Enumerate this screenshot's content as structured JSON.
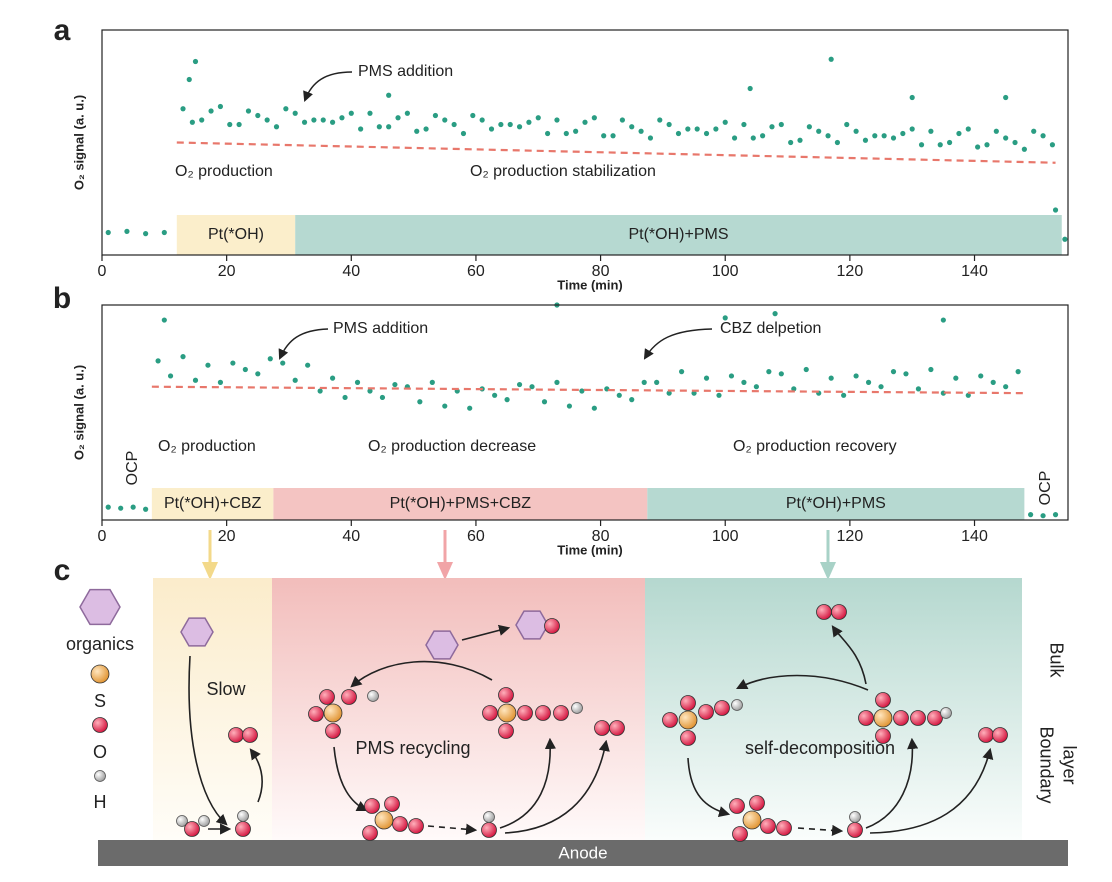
{
  "chart_data": [
    {
      "type": "scatter",
      "panel_label": "a",
      "x_label": "Time (min)",
      "y_label": "O₂ signal (a. u.)",
      "xlim": [
        0,
        155
      ],
      "xticks": [
        0,
        20,
        40,
        60,
        80,
        100,
        120,
        140
      ],
      "ylim": [
        0,
        10
      ],
      "series": [
        {
          "color": "#2a9d83",
          "x": [
            1,
            4,
            7,
            10,
            13,
            14.5,
            16,
            17.5,
            19,
            20.5,
            22,
            23.5,
            25,
            26.5,
            28,
            29.5,
            31,
            32.5,
            34,
            35.5,
            37,
            38.5,
            40,
            41.5,
            43,
            44.5,
            46,
            47.5,
            49,
            50.5,
            52,
            53.5,
            55,
            56.5,
            58,
            59.5,
            61,
            62.5,
            64,
            65.5,
            67,
            68.5,
            70,
            71.5,
            73,
            74.5,
            76,
            77.5,
            79,
            80.5,
            82,
            83.5,
            85,
            86.5,
            88,
            89.5,
            91,
            92.5,
            94,
            95.5,
            97,
            98.5,
            100,
            101.5,
            103,
            104.5,
            106,
            107.5,
            109,
            110.5,
            112,
            113.5,
            115,
            116.5,
            118,
            119.5,
            121,
            122.5,
            124,
            125.5,
            127,
            128.5,
            130,
            131.5,
            133,
            134.5,
            136,
            137.5,
            139,
            140.5,
            142,
            143.5,
            145,
            146.5,
            148,
            149.5,
            151,
            152.5,
            14,
            15,
            46,
            104,
            117,
            130,
            145,
            153,
            154.5
          ],
          "values": [
            1.0,
            1.05,
            0.95,
            1.0,
            6.5,
            5.9,
            6.0,
            6.4,
            6.6,
            5.8,
            5.8,
            6.4,
            6.2,
            6.0,
            5.7,
            6.5,
            6.3,
            5.9,
            6.0,
            6.0,
            5.9,
            6.1,
            6.3,
            5.6,
            6.3,
            5.7,
            5.7,
            6.1,
            6.3,
            5.5,
            5.6,
            6.2,
            6.0,
            5.8,
            5.4,
            6.2,
            6.0,
            5.6,
            5.8,
            5.8,
            5.7,
            5.9,
            6.1,
            5.4,
            6.0,
            5.4,
            5.5,
            5.9,
            6.1,
            5.3,
            5.3,
            6.0,
            5.7,
            5.5,
            5.2,
            6.0,
            5.8,
            5.4,
            5.6,
            5.6,
            5.4,
            5.6,
            5.9,
            5.2,
            5.8,
            5.2,
            5.3,
            5.7,
            5.8,
            5.0,
            5.1,
            5.7,
            5.5,
            5.3,
            5.0,
            5.8,
            5.5,
            5.1,
            5.3,
            5.3,
            5.2,
            5.4,
            5.6,
            4.9,
            5.5,
            4.9,
            5.0,
            5.4,
            5.6,
            4.8,
            4.9,
            5.5,
            5.2,
            5.0,
            4.7,
            5.5,
            5.3,
            4.9,
            7.8,
            8.6,
            7.1,
            7.4,
            8.7,
            7.0,
            7.0,
            2.0,
            0.7
          ]
        }
      ],
      "trend_line": {
        "color": "#e8776b",
        "x": [
          12,
          153
        ],
        "values": [
          5.0,
          4.1
        ]
      },
      "phases": [
        {
          "label": "Pt(*OH)",
          "start": 12,
          "end": 31,
          "color": "#fbeecb"
        },
        {
          "label": "Pt(*OH)+PMS",
          "start": 31,
          "end": 154,
          "color": "#b6d9d1"
        }
      ],
      "annotations": [
        "PMS addition",
        "O₂ production",
        "O₂ production stabilization"
      ]
    },
    {
      "type": "scatter",
      "panel_label": "b",
      "x_label": "Time (min)",
      "y_label": "O₂ signal (a. u.)",
      "xlim": [
        0,
        155
      ],
      "xticks": [
        0,
        20,
        40,
        60,
        80,
        100,
        120,
        140
      ],
      "ylim": [
        0,
        10
      ],
      "series": [
        {
          "color": "#2a9d83",
          "x": [
            1,
            3,
            5,
            7,
            9,
            11,
            13,
            15,
            17,
            19,
            21,
            23,
            25,
            27,
            29,
            31,
            33,
            35,
            37,
            39,
            41,
            43,
            45,
            47,
            49,
            51,
            53,
            55,
            57,
            59,
            61,
            63,
            65,
            67,
            69,
            71,
            73,
            75,
            77,
            79,
            81,
            83,
            85,
            87,
            89,
            91,
            93,
            95,
            97,
            99,
            101,
            103,
            105,
            107,
            109,
            111,
            113,
            115,
            117,
            119,
            121,
            123,
            125,
            127,
            129,
            131,
            133,
            135,
            137,
            139,
            141,
            143,
            145,
            147,
            149,
            151,
            153,
            10,
            73,
            100,
            108,
            135
          ],
          "values": [
            0.6,
            0.55,
            0.6,
            0.5,
            7.4,
            6.7,
            7.6,
            6.5,
            7.2,
            6.4,
            7.3,
            7.0,
            6.8,
            7.5,
            7.3,
            6.5,
            7.2,
            6.0,
            6.6,
            5.7,
            6.4,
            6.0,
            5.7,
            6.3,
            6.2,
            5.5,
            6.4,
            5.3,
            6.0,
            5.2,
            6.1,
            5.8,
            5.6,
            6.3,
            6.2,
            5.5,
            6.4,
            5.3,
            6.0,
            5.2,
            6.1,
            5.8,
            5.6,
            6.4,
            6.4,
            5.9,
            6.9,
            5.9,
            6.6,
            5.8,
            6.7,
            6.4,
            6.2,
            6.9,
            6.8,
            6.1,
            7.0,
            5.9,
            6.6,
            5.8,
            6.7,
            6.4,
            6.2,
            6.9,
            6.8,
            6.1,
            7.0,
            5.9,
            6.6,
            5.8,
            6.7,
            6.4,
            6.2,
            6.9,
            0.25,
            0.2,
            0.25,
            9.3,
            10,
            9.4,
            9.6,
            9.3
          ]
        }
      ],
      "trend_line": {
        "color": "#e8776b",
        "x": [
          8,
          148
        ],
        "values": [
          6.2,
          5.9
        ]
      },
      "phases": [
        {
          "label": "Pt(*OH)+CBZ",
          "start": 8,
          "end": 27.5,
          "color": "#fbeecb"
        },
        {
          "label": "Pt(*OH)+PMS+CBZ",
          "start": 27.5,
          "end": 87.5,
          "color": "#f4c4c2"
        },
        {
          "label": "Pt(*OH)+PMS",
          "start": 87.5,
          "end": 148,
          "color": "#b6d9d1"
        }
      ],
      "annotations": [
        "PMS addition",
        "CBZ delpetion",
        "O₂ production",
        "O₂ production decrease",
        "O₂ production recovery",
        "OCP",
        "OCP"
      ]
    }
  ],
  "diagram": {
    "panel_label": "c",
    "legend": [
      "organics",
      "S",
      "O",
      "H"
    ],
    "regions": [
      "Slow",
      "PMS recycling",
      "self-decomposition"
    ],
    "layers": [
      "Bulk",
      "Boundary",
      "layer"
    ],
    "electrode": "Anode"
  }
}
